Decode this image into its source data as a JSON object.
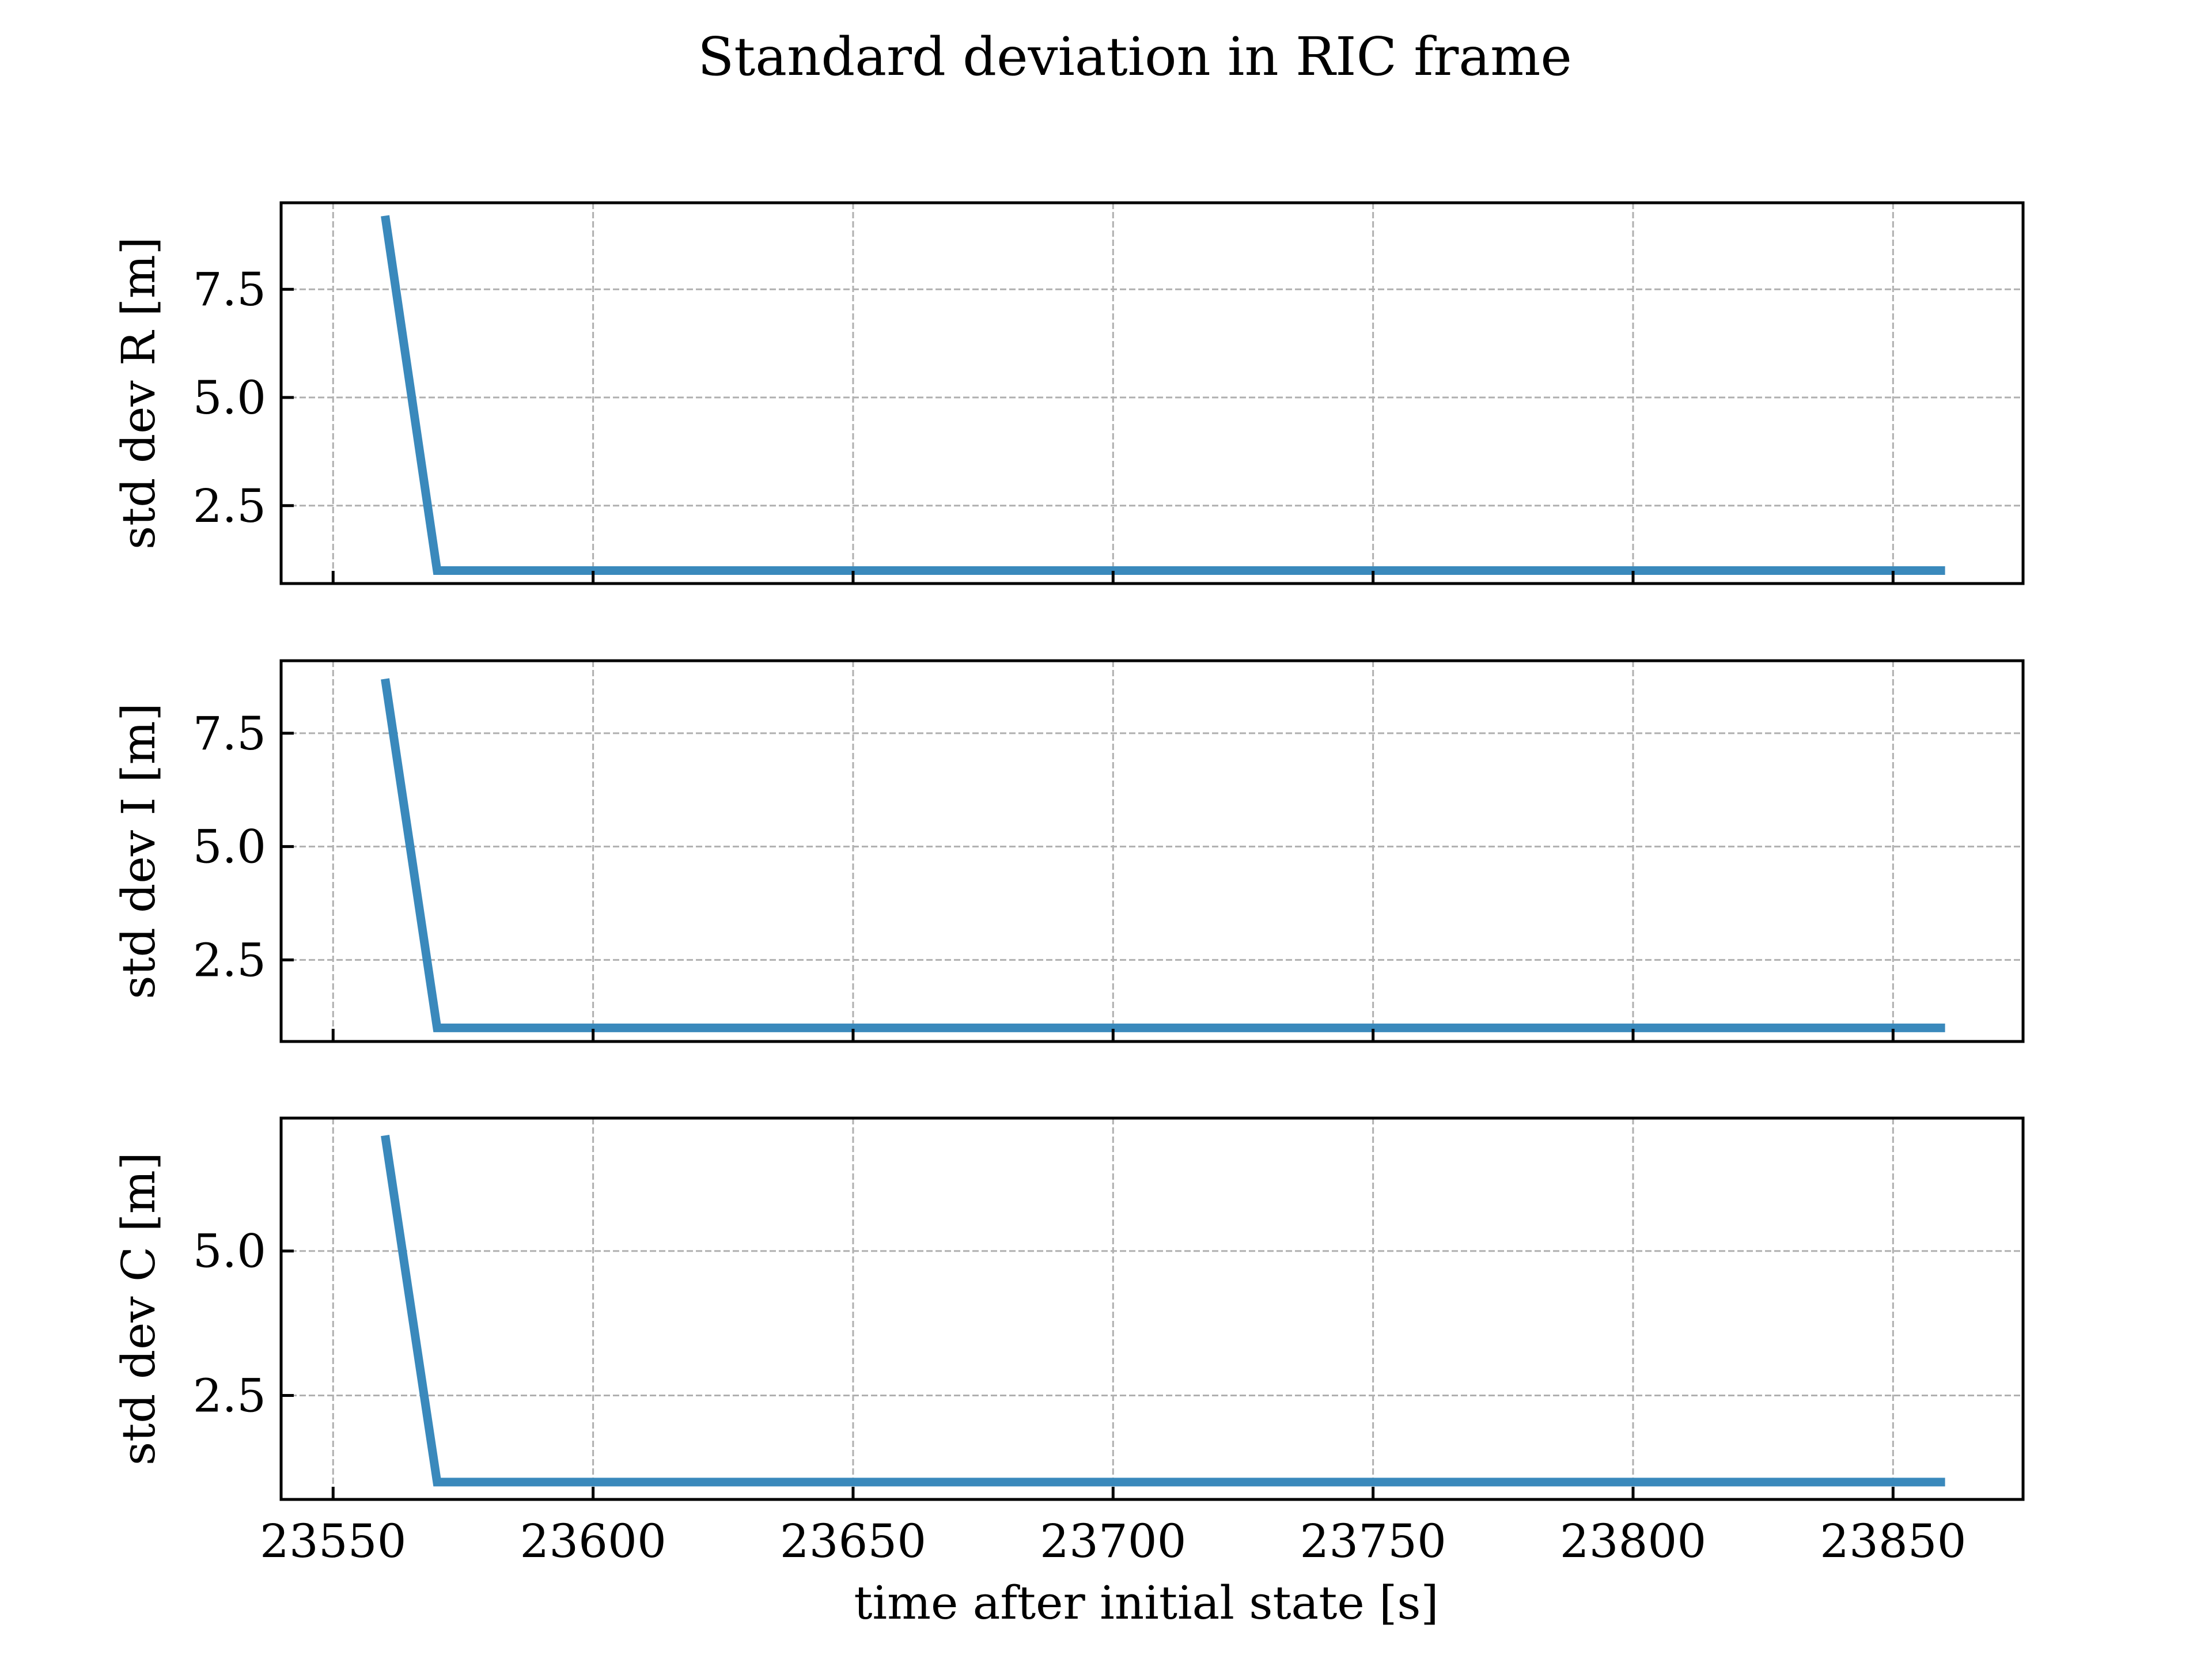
{
  "title": "Standard deviation in RIC frame",
  "xlabel": "time after initial state [s]",
  "line_color": "#3a89bc",
  "grid_color": "#b0b0b0",
  "chart_data": [
    {
      "type": "line",
      "ylabel": "std dev R [m]",
      "xlim": [
        23540,
        23875
      ],
      "ylim": [
        0.7,
        9.5
      ],
      "yticks": [
        2.5,
        5.0,
        7.5
      ],
      "yticklabels": [
        "2.5",
        "5.0",
        "7.5"
      ],
      "xticks": [
        23550,
        23600,
        23650,
        23700,
        23750,
        23800,
        23850
      ],
      "xticklabels": [],
      "grid": true,
      "series": [
        {
          "x": [
            23560,
            23570,
            23860
          ],
          "y": [
            9.2,
            1.0,
            1.0
          ]
        }
      ]
    },
    {
      "type": "line",
      "ylabel": "std dev I [m]",
      "xlim": [
        23540,
        23875
      ],
      "ylim": [
        0.7,
        9.1
      ],
      "yticks": [
        2.5,
        5.0,
        7.5
      ],
      "yticklabels": [
        "2.5",
        "5.0",
        "7.5"
      ],
      "xticks": [
        23550,
        23600,
        23650,
        23700,
        23750,
        23800,
        23850
      ],
      "xticklabels": [],
      "grid": true,
      "series": [
        {
          "x": [
            23560,
            23570,
            23860
          ],
          "y": [
            8.7,
            1.0,
            1.0
          ]
        }
      ]
    },
    {
      "type": "line",
      "ylabel": "std dev C [m]",
      "xlim": [
        23540,
        23875
      ],
      "ylim": [
        0.7,
        7.3
      ],
      "yticks": [
        2.5,
        5.0
      ],
      "yticklabels": [
        "2.5",
        "5.0"
      ],
      "xticks": [
        23550,
        23600,
        23650,
        23700,
        23750,
        23800,
        23850
      ],
      "xticklabels": [
        "23550",
        "23600",
        "23650",
        "23700",
        "23750",
        "23800",
        "23850"
      ],
      "grid": true,
      "series": [
        {
          "x": [
            23560,
            23570,
            23860
          ],
          "y": [
            7.0,
            1.0,
            1.0
          ]
        }
      ]
    }
  ]
}
